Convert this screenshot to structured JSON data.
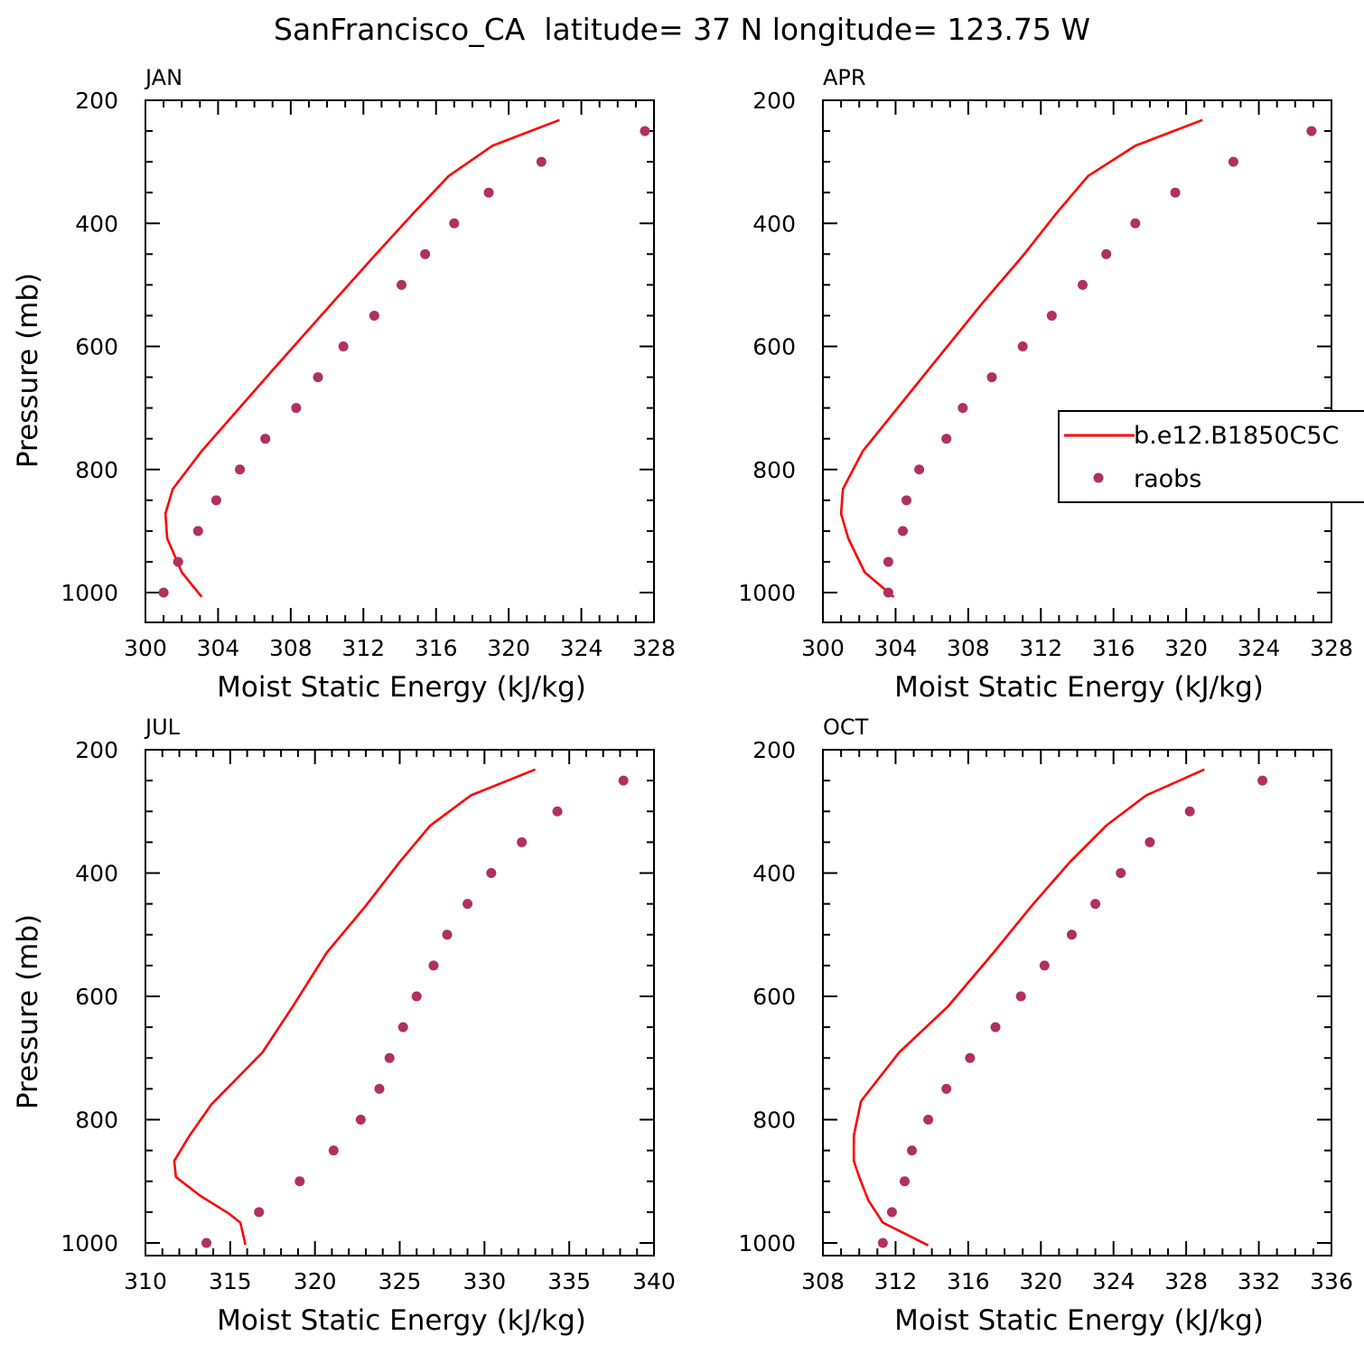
{
  "figure": {
    "title": "SanFrancisco_CA  latitude= 37 N longitude= 123.75 W"
  },
  "colors": {
    "model": "#ff0000",
    "raobs": "#b03060",
    "frame": "#000000"
  },
  "legend": {
    "model_label": "b.e12.B1850C5C",
    "obs_label": "raobs"
  },
  "chart_data": [
    {
      "type": "line",
      "panel": "JAN",
      "xlabel": "Moist Static Energy (kJ/kg)",
      "ylabel": "Pressure (mb)",
      "xlim": [
        300,
        328
      ],
      "ylim": [
        200,
        1025
      ],
      "y_reversed": true,
      "xticks": [
        300,
        304,
        308,
        312,
        316,
        320,
        324,
        328
      ],
      "yticks": [
        200,
        400,
        600,
        800,
        1000
      ],
      "series": [
        {
          "name": "b.e12.B1850C5C",
          "style": "line",
          "x": [
            322.8,
            319.1,
            316.7,
            314.8,
            312.6,
            310.3,
            306.9,
            303.1,
            301.5,
            301.1,
            301.2,
            302.0,
            303.1
          ],
          "y": [
            232,
            274,
            323,
            382,
            453,
            529,
            642,
            770,
            832,
            872,
            912,
            967,
            1007
          ]
        },
        {
          "name": "raobs",
          "style": "markers",
          "x": [
            327.5,
            321.8,
            318.9,
            317.0,
            315.4,
            314.1,
            312.6,
            310.9,
            309.5,
            308.3,
            306.6,
            305.2,
            303.9,
            302.9,
            301.8,
            301.0
          ],
          "y": [
            250,
            300,
            350,
            400,
            450,
            500,
            550,
            600,
            650,
            700,
            750,
            800,
            850,
            900,
            950,
            1000
          ]
        }
      ]
    },
    {
      "type": "line",
      "panel": "APR",
      "xlabel": "Moist Static Energy (kJ/kg)",
      "ylabel": "",
      "xlim": [
        300,
        328
      ],
      "ylim": [
        200,
        1025
      ],
      "y_reversed": true,
      "xticks": [
        300,
        304,
        308,
        312,
        316,
        320,
        324,
        328
      ],
      "yticks": [
        200,
        400,
        600,
        800,
        1000
      ],
      "series": [
        {
          "name": "b.e12.B1850C5C",
          "style": "line",
          "x": [
            320.9,
            317.2,
            314.6,
            312.9,
            311.0,
            308.8,
            305.7,
            302.2,
            301.1,
            301.0,
            301.4,
            302.3,
            303.9
          ],
          "y": [
            232,
            274,
            323,
            382,
            453,
            529,
            642,
            770,
            832,
            872,
            912,
            967,
            1007
          ]
        },
        {
          "name": "raobs",
          "style": "markers",
          "x": [
            326.9,
            322.6,
            319.4,
            317.2,
            315.6,
            314.3,
            312.6,
            311.0,
            309.3,
            307.7,
            306.8,
            305.3,
            304.6,
            304.4,
            303.6,
            303.6
          ],
          "y": [
            250,
            300,
            350,
            400,
            450,
            500,
            550,
            600,
            650,
            700,
            750,
            800,
            850,
            900,
            950,
            1000
          ]
        }
      ]
    },
    {
      "type": "line",
      "panel": "JUL",
      "xlabel": "Moist Static Energy (kJ/kg)",
      "ylabel": "Pressure (mb)",
      "xlim": [
        310,
        340
      ],
      "ylim": [
        200,
        1025
      ],
      "y_reversed": true,
      "xticks": [
        310,
        315,
        320,
        325,
        330,
        335,
        340
      ],
      "yticks": [
        200,
        400,
        600,
        800,
        1000
      ],
      "series": [
        {
          "name": "b.e12.B1850C5C",
          "style": "line",
          "x": [
            333.0,
            329.2,
            326.8,
            325.0,
            323.0,
            320.7,
            318.7,
            316.9,
            313.9,
            312.6,
            311.7,
            311.8,
            313.2,
            314.9,
            315.6,
            315.9
          ],
          "y": [
            232,
            274,
            323,
            382,
            453,
            529,
            616,
            691,
            775,
            826,
            867,
            893,
            923,
            952,
            967,
            1003
          ]
        },
        {
          "name": "raobs",
          "style": "markers",
          "x": [
            338.2,
            334.3,
            332.2,
            330.4,
            329.0,
            327.8,
            327.0,
            326.0,
            325.2,
            324.4,
            323.8,
            322.7,
            321.1,
            319.1,
            316.7,
            313.6
          ],
          "y": [
            250,
            300,
            350,
            400,
            450,
            500,
            550,
            600,
            650,
            700,
            750,
            800,
            850,
            900,
            950,
            1000
          ]
        }
      ]
    },
    {
      "type": "line",
      "panel": "OCT",
      "xlabel": "Moist Static Energy (kJ/kg)",
      "ylabel": "",
      "xlim": [
        308,
        336
      ],
      "ylim": [
        200,
        1025
      ],
      "y_reversed": true,
      "xticks": [
        308,
        312,
        316,
        320,
        324,
        328,
        332,
        336
      ],
      "yticks": [
        200,
        400,
        600,
        800,
        1000
      ],
      "series": [
        {
          "name": "b.e12.B1850C5C",
          "style": "line",
          "x": [
            329.0,
            325.8,
            323.6,
            321.6,
            319.5,
            317.4,
            314.9,
            312.2,
            310.1,
            309.7,
            309.7,
            310.0,
            310.5,
            311.3,
            313.8
          ],
          "y": [
            232,
            274,
            323,
            382,
            453,
            529,
            616,
            691,
            770,
            826,
            867,
            893,
            931,
            967,
            1004
          ]
        },
        {
          "name": "raobs",
          "style": "markers",
          "x": [
            332.2,
            328.2,
            326.0,
            324.4,
            323.0,
            321.7,
            320.2,
            318.9,
            317.5,
            316.1,
            314.8,
            313.8,
            312.9,
            312.5,
            311.8,
            311.3
          ],
          "y": [
            250,
            300,
            350,
            400,
            450,
            500,
            550,
            600,
            650,
            700,
            750,
            800,
            850,
            900,
            950,
            1000
          ]
        }
      ]
    }
  ]
}
